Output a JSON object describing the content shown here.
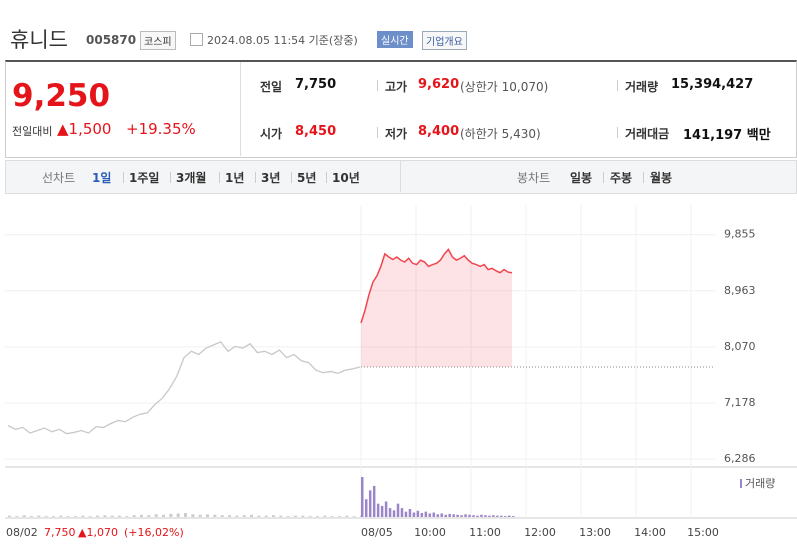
{
  "header": {
    "name": "휴니드",
    "code": "005870",
    "market": "코스피",
    "timestamp": "2024.08.05 11:54 기준(장중)",
    "realtime": "실시간",
    "company_info": "기업개요"
  },
  "quote": {
    "price": "9,250",
    "change_label": "전일대비",
    "change": "▲1,500",
    "change_pct": "+19.35%"
  },
  "stats": [
    [
      {
        "label": "전일",
        "value": "7,750"
      },
      {
        "label": "고가",
        "value": "9,620",
        "note": "(상한가 10,070)"
      },
      {
        "label": "거래량",
        "value": "15,394,427"
      }
    ],
    [
      {
        "label": "시가",
        "value": "8,450"
      },
      {
        "label": "저가",
        "value": "8,400",
        "note": "(하한가 5,430)"
      },
      {
        "label": "거래대금",
        "value": "141,197 백만"
      }
    ]
  ],
  "tabs": {
    "line_label": "선차트",
    "periods": [
      "1일",
      "1주일",
      "3개월",
      "1년",
      "3년",
      "5년",
      "10년"
    ],
    "candle_label": "봉차트",
    "candle_periods": [
      "일봉",
      "주봉",
      "월봉"
    ]
  },
  "chart": {
    "ylim": [
      6192,
      10327
    ],
    "yticks": [
      {
        "value": 9855,
        "label": "9,855"
      },
      {
        "value": 8963,
        "label": "8,963"
      },
      {
        "value": 8070,
        "label": "8,070"
      },
      {
        "value": 7178,
        "label": "7,178"
      },
      {
        "value": 6286,
        "label": "6,286"
      }
    ],
    "prev_day": {
      "color": "#c8c8c8",
      "values": [
        6820,
        6760,
        6790,
        6700,
        6740,
        6780,
        6720,
        6760,
        6690,
        6710,
        6740,
        6700,
        6800,
        6790,
        6850,
        6900,
        6880,
        6950,
        7000,
        7020,
        7150,
        7250,
        7400,
        7600,
        7900,
        8000,
        7950,
        8050,
        8100,
        8150,
        8000,
        8080,
        8050,
        8120,
        7980,
        8000,
        7950,
        8020,
        7900,
        7950,
        7850,
        7820,
        7700,
        7660,
        7680,
        7650,
        7700,
        7720,
        7750
      ]
    },
    "today": {
      "color": "#f2444f",
      "values": [
        8450,
        8650,
        8900,
        9100,
        9200,
        9350,
        9550,
        9500,
        9460,
        9500,
        9450,
        9420,
        9480,
        9400,
        9380,
        9450,
        9420,
        9350,
        9380,
        9400,
        9450,
        9550,
        9620,
        9500,
        9450,
        9480,
        9520,
        9450,
        9400,
        9380,
        9350,
        9380,
        9300,
        9320,
        9280,
        9250,
        9300,
        9260,
        9250
      ]
    },
    "prev_close": 7750,
    "volume_label": "거래량",
    "prev_volume": [
      3,
      2,
      4,
      2,
      3,
      2,
      2,
      3,
      2,
      2,
      3,
      2,
      3,
      4,
      3,
      3,
      2,
      4,
      5,
      4,
      6,
      5,
      7,
      8,
      9,
      6,
      5,
      6,
      5,
      4,
      4,
      3,
      4,
      5,
      3,
      3,
      4,
      3,
      2,
      3,
      3,
      2,
      2,
      3,
      2,
      2,
      3,
      2,
      3
    ],
    "today_volume": [
      90,
      40,
      60,
      70,
      30,
      25,
      35,
      20,
      15,
      30,
      20,
      12,
      18,
      10,
      14,
      9,
      12,
      8,
      10,
      6,
      8,
      5,
      7,
      6,
      5,
      4,
      6,
      5,
      4,
      3,
      5,
      4,
      3,
      4,
      3,
      3,
      2,
      3,
      2
    ],
    "x_labels": [
      "08/02",
      "08/05",
      "10:00",
      "11:00",
      "12:00",
      "13:00",
      "14:00",
      "15:00"
    ],
    "prev_summary": {
      "price": "7,750",
      "change": "▲1,070",
      "pct": "(+16,02%)"
    }
  }
}
